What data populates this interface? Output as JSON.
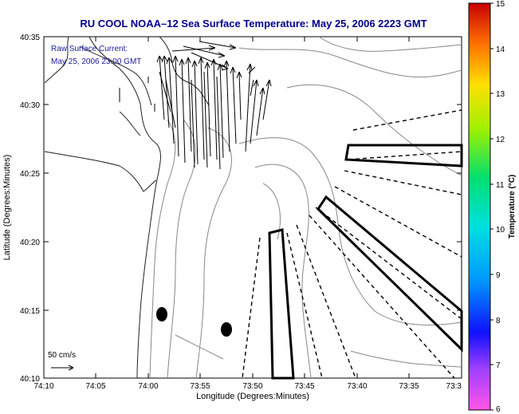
{
  "title": "RU COOL  NOAA–12  Sea Surface Temperature:  May 25, 2006 2223 GMT",
  "annotation": {
    "line1": "Raw Surface Current:",
    "line2": "May 25, 2006 23:00 GMT"
  },
  "scale_label": "50 cm/s",
  "axes": {
    "xlabel": "Longitude (Degrees:Minutes)",
    "ylabel": "Latitude (Degrees:Minutes)",
    "x_ticks": [
      "74:10",
      "74:05",
      "74:00",
      "73:55",
      "73:50",
      "73:45",
      "73:40",
      "73:35",
      "73:3"
    ],
    "y_ticks": [
      "40:35",
      "40:30",
      "40:25",
      "40:20",
      "40:15",
      "40:10"
    ]
  },
  "colorbar": {
    "label": "Temperature (°C)",
    "ticks": [
      "15",
      "14",
      "13",
      "12",
      "11",
      "10",
      "9",
      "8",
      "7",
      "6"
    ],
    "range": [
      6,
      15
    ]
  },
  "colors": {
    "title": "#00008b",
    "annotation": "#1a1aa0",
    "map_line": "#222222",
    "contour": "#888888"
  }
}
